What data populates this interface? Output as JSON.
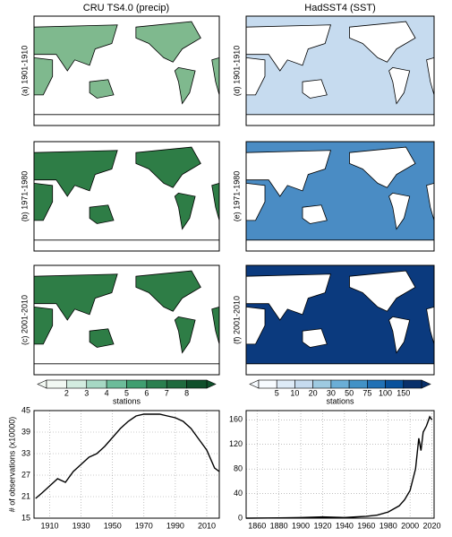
{
  "headers": [
    "CRU TS4.0 (precip)",
    "HadSST4 (SST)"
  ],
  "maps": [
    [
      "(a) 1901-1910",
      "(b) 1971-1980",
      "(c) 2001-2010"
    ],
    [
      "(d) 1901-1910",
      "(e) 1971-1980",
      "(f) 2001-2010"
    ]
  ],
  "colorbars": [
    {
      "label": "stations",
      "ticks": [
        2,
        3,
        4,
        5,
        6,
        7,
        8
      ],
      "colors": [
        "#f2f8f3",
        "#d3ece0",
        "#a6d8c4",
        "#6cbc9a",
        "#3f9e70",
        "#2a7f4f",
        "#1f6a3e",
        "#0f4f2b"
      ]
    },
    {
      "label": "stations",
      "ticks": [
        5,
        10,
        20,
        30,
        50,
        75,
        100,
        150
      ],
      "colors": [
        "#f7fbff",
        "#deebf7",
        "#c6dbef",
        "#9ecae1",
        "#6baed6",
        "#4292c6",
        "#2171b5",
        "#08519c",
        "#08306b"
      ]
    }
  ],
  "chart_data": [
    {
      "type": "line",
      "ylabel": "# of observations (x10000)",
      "grid": true,
      "color": "#000000",
      "x": [
        1901,
        1905,
        1910,
        1915,
        1920,
        1925,
        1930,
        1935,
        1940,
        1945,
        1950,
        1955,
        1960,
        1965,
        1970,
        1975,
        1980,
        1985,
        1990,
        1995,
        2000,
        2005,
        2010,
        2015,
        2018
      ],
      "values": [
        20.5,
        22,
        24,
        26,
        25,
        28,
        30,
        32,
        33,
        35,
        37.5,
        40,
        42,
        43.5,
        44,
        44,
        44,
        43.5,
        43,
        42,
        40,
        37,
        34,
        29,
        28
      ],
      "xlim": [
        1900,
        2018
      ],
      "xticks": [
        1910,
        1930,
        1950,
        1970,
        1990,
        2010
      ],
      "ylim": [
        15,
        45
      ],
      "yticks": [
        15,
        21,
        27,
        33,
        39,
        45
      ]
    },
    {
      "type": "line",
      "grid": true,
      "color": "#000000",
      "x": [
        1850,
        1880,
        1900,
        1920,
        1940,
        1950,
        1960,
        1970,
        1980,
        1990,
        1995,
        2000,
        2005,
        2008,
        2010,
        2012,
        2015,
        2018,
        2020
      ],
      "values": [
        0,
        0.5,
        1,
        2,
        1,
        2,
        3,
        5,
        10,
        20,
        30,
        45,
        80,
        130,
        110,
        140,
        150,
        165,
        160
      ],
      "xlim": [
        1850,
        2022
      ],
      "xticks": [
        1860,
        1880,
        1900,
        1920,
        1940,
        1960,
        1980,
        2000,
        2020
      ],
      "ylim": [
        0,
        175
      ],
      "yticks": [
        0,
        40,
        80,
        120,
        160
      ]
    }
  ]
}
